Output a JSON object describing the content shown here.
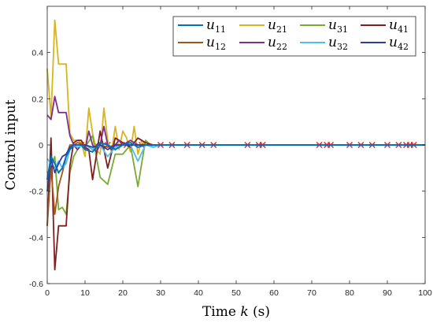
{
  "chart_data": {
    "type": "line",
    "xlabel": "Time",
    "xlabel_var": "k",
    "xlabel_unit": "(s)",
    "ylabel": "Control input",
    "xlim": [
      0,
      100
    ],
    "ylim": [
      -0.6,
      0.6
    ],
    "xticks": [
      0,
      10,
      20,
      30,
      40,
      50,
      60,
      70,
      80,
      90,
      100
    ],
    "yticks": [
      -0.6,
      -0.4,
      -0.2,
      0,
      0.2,
      0.4
    ],
    "ytick_labels": [
      "-0.6",
      "-0.4",
      "-0.2",
      "0",
      "0.2",
      "0.4"
    ],
    "legend_position": "top-right",
    "marker_color": "#d62728",
    "event_marker": "x",
    "event_times": [
      9,
      13,
      16,
      18,
      21,
      25,
      30,
      33,
      37,
      41,
      44,
      53,
      56,
      57,
      72,
      74,
      75,
      80,
      83,
      86,
      90,
      93,
      95,
      96,
      97
    ],
    "series": [
      {
        "name": "u",
        "sub": "11",
        "color": "#0072bd",
        "x": [
          0,
          1,
          2,
          3,
          4,
          5,
          6,
          7,
          8,
          9,
          10,
          12,
          14,
          16,
          18,
          20,
          22,
          24,
          26,
          28,
          30,
          100
        ],
        "y": [
          -0.15,
          -0.05,
          -0.08,
          -0.12,
          -0.1,
          -0.05,
          -0.02,
          0.0,
          0.0,
          0.0,
          -0.02,
          -0.03,
          0.01,
          0.0,
          -0.02,
          0.0,
          0.01,
          -0.01,
          0.0,
          0.0,
          0.0,
          0.0
        ]
      },
      {
        "name": "u",
        "sub": "21",
        "color": "#d9b41e",
        "x": [
          0,
          1,
          2,
          3,
          4,
          5,
          6,
          7,
          8,
          9,
          10,
          11,
          12,
          13,
          14,
          15,
          16,
          17,
          18,
          19,
          20,
          21,
          22,
          23,
          24,
          25,
          26,
          28,
          30,
          100
        ],
        "y": [
          0.33,
          0.12,
          0.54,
          0.35,
          0.35,
          0.35,
          0.05,
          0.02,
          0.02,
          0.01,
          -0.05,
          0.16,
          0.05,
          -0.02,
          -0.04,
          0.16,
          0.02,
          -0.03,
          0.08,
          -0.02,
          0.06,
          0.03,
          -0.03,
          0.08,
          -0.04,
          0.02,
          0.0,
          0.0,
          0.0,
          0.0
        ]
      },
      {
        "name": "u",
        "sub": "31",
        "color": "#77ac30",
        "x": [
          0,
          1,
          2,
          3,
          4,
          5,
          6,
          7,
          8,
          9,
          10,
          12,
          14,
          16,
          18,
          20,
          22,
          24,
          26,
          28,
          30,
          32,
          34,
          36,
          100
        ],
        "y": [
          -0.12,
          -0.1,
          -0.05,
          -0.28,
          -0.27,
          -0.3,
          -0.12,
          -0.05,
          -0.02,
          0.0,
          -0.01,
          0.04,
          -0.14,
          -0.17,
          -0.04,
          -0.04,
          0.0,
          -0.18,
          0.02,
          -0.01,
          0.0,
          0.0,
          0.0,
          0.0,
          0.0
        ]
      },
      {
        "name": "u",
        "sub": "41",
        "color": "#7e1e1e",
        "x": [
          0,
          1,
          2,
          3,
          4,
          5,
          6,
          7,
          8,
          9,
          10,
          11,
          12,
          14,
          16,
          18,
          20,
          22,
          24,
          26,
          28,
          30,
          100
        ],
        "y": [
          -0.35,
          0.03,
          -0.54,
          -0.35,
          -0.35,
          -0.35,
          -0.09,
          0.01,
          0.02,
          0.02,
          -0.01,
          -0.02,
          -0.15,
          0.06,
          -0.1,
          0.03,
          0.01,
          -0.01,
          0.03,
          0.01,
          0.0,
          0.0,
          0.0
        ]
      },
      {
        "name": "u",
        "sub": "12",
        "color": "#a5541c",
        "x": [
          0,
          1,
          2,
          3,
          4,
          5,
          6,
          7,
          8,
          10,
          12,
          14,
          16,
          18,
          20,
          22,
          24,
          26,
          28,
          30,
          100
        ],
        "y": [
          -0.35,
          -0.1,
          -0.3,
          -0.18,
          -0.12,
          -0.05,
          0.0,
          0.0,
          0.01,
          0.0,
          -0.02,
          0.0,
          -0.01,
          0.0,
          0.0,
          0.0,
          0.0,
          0.0,
          0.0,
          0.0,
          0.0
        ]
      },
      {
        "name": "u",
        "sub": "22",
        "color": "#7e2f8e",
        "x": [
          0,
          1,
          2,
          3,
          4,
          5,
          6,
          7,
          8,
          9,
          10,
          11,
          12,
          13,
          14,
          15,
          16,
          17,
          18,
          19,
          20,
          22,
          24,
          26,
          28,
          30,
          100
        ],
        "y": [
          0.13,
          0.11,
          0.21,
          0.14,
          0.14,
          0.14,
          0.04,
          0.0,
          -0.02,
          0.0,
          -0.02,
          0.06,
          0.0,
          -0.03,
          0.0,
          0.08,
          0.0,
          -0.02,
          0.0,
          0.02,
          0.0,
          0.02,
          0.0,
          0.0,
          0.0,
          0.0,
          0.0
        ]
      },
      {
        "name": "u",
        "sub": "32",
        "color": "#4dbeee",
        "x": [
          0,
          1,
          2,
          3,
          4,
          5,
          6,
          7,
          8,
          10,
          12,
          14,
          16,
          18,
          20,
          22,
          24,
          26,
          28,
          30,
          100
        ],
        "y": [
          -0.06,
          -0.08,
          -0.1,
          -0.07,
          -0.1,
          -0.08,
          -0.02,
          0.0,
          -0.01,
          0.0,
          -0.02,
          0.0,
          -0.05,
          -0.01,
          0.0,
          0.0,
          -0.07,
          0.0,
          -0.01,
          0.0,
          0.0
        ]
      },
      {
        "name": "u",
        "sub": "42",
        "color": "#2c3e99",
        "x": [
          0,
          1,
          2,
          3,
          4,
          5,
          6,
          7,
          8,
          10,
          12,
          14,
          16,
          18,
          20,
          22,
          24,
          26,
          28,
          30,
          100
        ],
        "y": [
          -0.2,
          -0.06,
          -0.12,
          -0.08,
          -0.05,
          -0.04,
          -0.01,
          0.0,
          0.0,
          0.0,
          -0.01,
          0.0,
          -0.02,
          0.0,
          0.0,
          0.0,
          0.0,
          0.0,
          0.0,
          0.0,
          0.0
        ]
      }
    ]
  }
}
